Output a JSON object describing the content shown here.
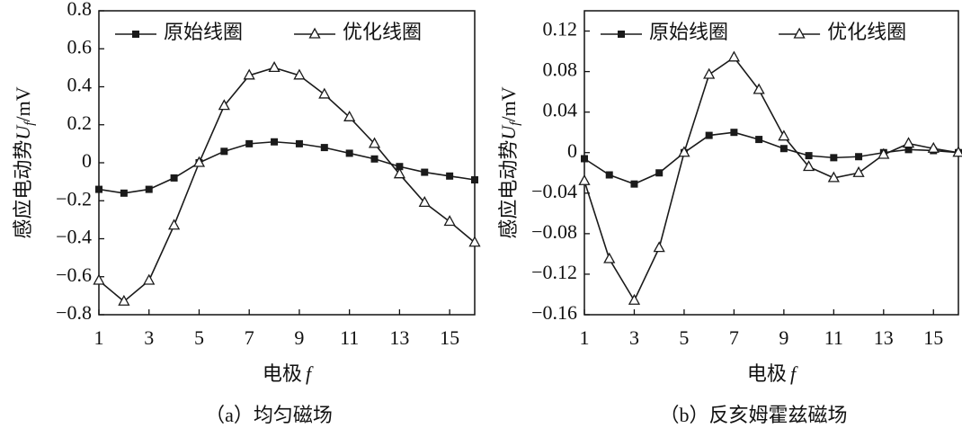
{
  "chart_data": [
    {
      "type": "line",
      "caption": "（a）均匀磁场",
      "ylabel": "感应电动势",
      "ylabel_symbol": "U",
      "ylabel_subscript": "f",
      "ylabel_unit": "/mV",
      "xlabel": "电极",
      "xlabel_symbol": "f",
      "x": [
        1,
        2,
        3,
        4,
        5,
        6,
        7,
        8,
        9,
        10,
        11,
        12,
        13,
        14,
        15,
        16
      ],
      "xlim": [
        1,
        16
      ],
      "xticks": [
        1,
        3,
        5,
        7,
        9,
        11,
        13,
        15
      ],
      "ylim": [
        -0.8,
        0.8
      ],
      "yticks": [
        {
          "value": -0.8,
          "label": "−0.8"
        },
        {
          "value": -0.6,
          "label": "−0.6"
        },
        {
          "value": -0.4,
          "label": "−0.4"
        },
        {
          "value": -0.2,
          "label": "−0.2"
        },
        0,
        0.2,
        0.4,
        0.6,
        0.8
      ],
      "legend": "top",
      "series": [
        {
          "name": "原始线圈",
          "color": "#1a1a1a",
          "marker": "square",
          "values": [
            -0.14,
            -0.16,
            -0.14,
            -0.08,
            0.0,
            0.06,
            0.1,
            0.11,
            0.1,
            0.08,
            0.05,
            0.02,
            -0.02,
            -0.05,
            -0.07,
            -0.09
          ]
        },
        {
          "name": "优化线圈",
          "color": "#1a1a1a",
          "marker": "triangle",
          "values": [
            -0.62,
            -0.73,
            -0.62,
            -0.33,
            0.0,
            0.3,
            0.46,
            0.5,
            0.46,
            0.36,
            0.24,
            0.1,
            -0.06,
            -0.21,
            -0.31,
            -0.42
          ]
        }
      ]
    },
    {
      "type": "line",
      "caption": "（b）反亥姆霍兹磁场",
      "ylabel": "感应电动势",
      "ylabel_symbol": "U",
      "ylabel_subscript": "f",
      "ylabel_unit": "/mV",
      "xlabel": "电极",
      "xlabel_symbol": "f",
      "x": [
        1,
        2,
        3,
        4,
        5,
        6,
        7,
        8,
        9,
        10,
        11,
        12,
        13,
        14,
        15,
        16
      ],
      "xlim": [
        1,
        16
      ],
      "xticks": [
        1,
        3,
        5,
        7,
        9,
        11,
        13,
        15
      ],
      "ylim": [
        -0.16,
        0.14
      ],
      "yticks": [
        {
          "value": -0.16,
          "label": "−0.16"
        },
        {
          "value": -0.12,
          "label": "−0.12"
        },
        {
          "value": -0.08,
          "label": "−0.08"
        },
        {
          "value": -0.04,
          "label": "−0.04"
        },
        0,
        0.04,
        0.08,
        0.12
      ],
      "legend": "top",
      "series": [
        {
          "name": "原始线圈",
          "color": "#1a1a1a",
          "marker": "square",
          "values": [
            -0.006,
            -0.022,
            -0.031,
            -0.02,
            0.0,
            0.017,
            0.02,
            0.013,
            0.004,
            -0.003,
            -0.005,
            -0.004,
            0.0,
            0.003,
            0.002,
            0.0
          ]
        },
        {
          "name": "优化线圈",
          "color": "#1a1a1a",
          "marker": "triangle",
          "values": [
            -0.028,
            -0.105,
            -0.146,
            -0.094,
            0.0,
            0.077,
            0.094,
            0.062,
            0.016,
            -0.014,
            -0.025,
            -0.02,
            -0.002,
            0.009,
            0.004,
            0.0
          ]
        }
      ]
    }
  ]
}
